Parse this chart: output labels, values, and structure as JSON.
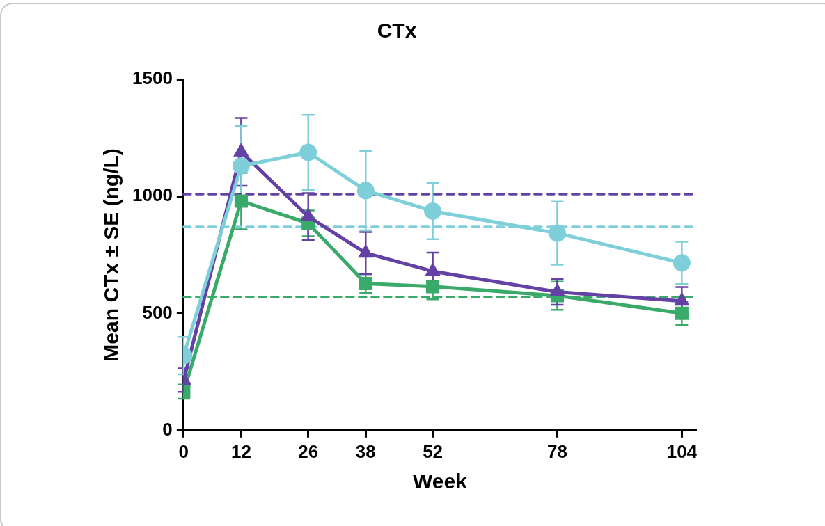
{
  "chart_data": {
    "type": "line",
    "title": "CTx",
    "xlabel": "Week",
    "ylabel": "Mean CTx ± SE (ng/L)",
    "x": [
      0,
      12,
      26,
      38,
      52,
      78,
      104
    ],
    "xlim": [
      0,
      107
    ],
    "xticks": [
      0,
      12,
      26,
      38,
      52,
      78,
      104
    ],
    "ylim": [
      0,
      1500
    ],
    "yticks": [
      0,
      500,
      1000,
      1500
    ],
    "grid": false,
    "legend": false,
    "line_style": "solid",
    "series": [
      {
        "color": "#3aaa6a",
        "marker": "square",
        "values": [
          166,
          980,
          885,
          628,
          615,
          576,
          501
        ],
        "errors": [
          30,
          120,
          55,
          40,
          55,
          60,
          50
        ]
      },
      {
        "color": "#6441a5",
        "marker": "triangle",
        "values": [
          215,
          1190,
          914,
          758,
          680,
          592,
          553
        ],
        "errors": [
          50,
          145,
          100,
          90,
          80,
          55,
          60
        ]
      },
      {
        "color": "#7ecfd9",
        "marker": "circle",
        "values": [
          320,
          1130,
          1188,
          1025,
          937,
          843,
          716
        ],
        "errors": [
          80,
          170,
          160,
          170,
          120,
          135,
          90
        ]
      }
    ],
    "ref_lines": [
      {
        "axis": "y",
        "value": 1010,
        "color": "#6441a5",
        "line_style": "dashed"
      },
      {
        "axis": "y",
        "value": 870,
        "color": "#7ecfd9",
        "line_style": "dashed"
      },
      {
        "axis": "y",
        "value": 570,
        "color": "#3aaa6a",
        "line_style": "dashed"
      }
    ]
  }
}
